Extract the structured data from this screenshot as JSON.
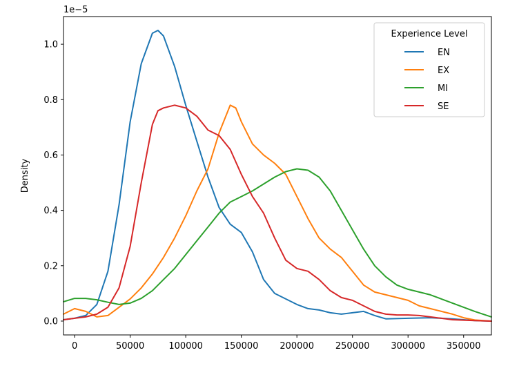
{
  "chart_data": {
    "type": "line",
    "title": "",
    "xlabel": "",
    "ylabel": "Density",
    "y_offset_label": "1e−5",
    "xlim": [
      -10000,
      375000
    ],
    "ylim": [
      -0.05,
      1.1
    ],
    "xticks": [
      0,
      50000,
      100000,
      150000,
      200000,
      250000,
      300000,
      350000
    ],
    "yticks": [
      0.0,
      0.2,
      0.4,
      0.6,
      0.8,
      1.0
    ],
    "xtick_labels": [
      "0",
      "50000",
      "100000",
      "150000",
      "200000",
      "250000",
      "300000",
      "350000"
    ],
    "ytick_labels": [
      "0.0",
      "0.2",
      "0.4",
      "0.6",
      "0.8",
      "1.0"
    ],
    "grid": false,
    "legend": {
      "title": "Experience Level",
      "placement": "top-right"
    },
    "series": [
      {
        "name": "EN",
        "color": "#1f77b4",
        "points": [
          [
            -10000,
            0.005
          ],
          [
            0,
            0.01
          ],
          [
            10000,
            0.02
          ],
          [
            20000,
            0.06
          ],
          [
            30000,
            0.18
          ],
          [
            40000,
            0.42
          ],
          [
            50000,
            0.72
          ],
          [
            60000,
            0.93
          ],
          [
            70000,
            1.04
          ],
          [
            75000,
            1.05
          ],
          [
            80000,
            1.03
          ],
          [
            90000,
            0.92
          ],
          [
            100000,
            0.78
          ],
          [
            110000,
            0.65
          ],
          [
            120000,
            0.52
          ],
          [
            130000,
            0.41
          ],
          [
            140000,
            0.35
          ],
          [
            150000,
            0.32
          ],
          [
            160000,
            0.25
          ],
          [
            170000,
            0.15
          ],
          [
            180000,
            0.1
          ],
          [
            190000,
            0.08
          ],
          [
            200000,
            0.06
          ],
          [
            210000,
            0.045
          ],
          [
            220000,
            0.04
          ],
          [
            230000,
            0.03
          ],
          [
            240000,
            0.025
          ],
          [
            250000,
            0.03
          ],
          [
            260000,
            0.035
          ],
          [
            270000,
            0.02
          ],
          [
            280000,
            0.008
          ],
          [
            300000,
            0.01
          ],
          [
            320000,
            0.012
          ],
          [
            340000,
            0.008
          ],
          [
            360000,
            0.002
          ],
          [
            375000,
            0.0
          ]
        ]
      },
      {
        "name": "EX",
        "color": "#ff7f0e",
        "points": [
          [
            -10000,
            0.025
          ],
          [
            0,
            0.045
          ],
          [
            10000,
            0.035
          ],
          [
            20000,
            0.015
          ],
          [
            30000,
            0.02
          ],
          [
            40000,
            0.05
          ],
          [
            50000,
            0.08
          ],
          [
            60000,
            0.12
          ],
          [
            70000,
            0.17
          ],
          [
            80000,
            0.23
          ],
          [
            90000,
            0.3
          ],
          [
            100000,
            0.38
          ],
          [
            110000,
            0.47
          ],
          [
            120000,
            0.55
          ],
          [
            130000,
            0.68
          ],
          [
            140000,
            0.78
          ],
          [
            145000,
            0.77
          ],
          [
            150000,
            0.72
          ],
          [
            160000,
            0.64
          ],
          [
            170000,
            0.6
          ],
          [
            180000,
            0.57
          ],
          [
            190000,
            0.53
          ],
          [
            200000,
            0.45
          ],
          [
            210000,
            0.37
          ],
          [
            220000,
            0.3
          ],
          [
            230000,
            0.26
          ],
          [
            240000,
            0.23
          ],
          [
            250000,
            0.18
          ],
          [
            260000,
            0.13
          ],
          [
            270000,
            0.105
          ],
          [
            280000,
            0.095
          ],
          [
            290000,
            0.085
          ],
          [
            300000,
            0.075
          ],
          [
            310000,
            0.055
          ],
          [
            320000,
            0.045
          ],
          [
            330000,
            0.035
          ],
          [
            340000,
            0.025
          ],
          [
            350000,
            0.012
          ],
          [
            360000,
            0.004
          ],
          [
            375000,
            0.0
          ]
        ]
      },
      {
        "name": "MI",
        "color": "#2ca02c",
        "points": [
          [
            -10000,
            0.07
          ],
          [
            0,
            0.082
          ],
          [
            10000,
            0.082
          ],
          [
            20000,
            0.077
          ],
          [
            30000,
            0.068
          ],
          [
            40000,
            0.06
          ],
          [
            50000,
            0.065
          ],
          [
            60000,
            0.082
          ],
          [
            70000,
            0.11
          ],
          [
            80000,
            0.15
          ],
          [
            90000,
            0.19
          ],
          [
            100000,
            0.24
          ],
          [
            110000,
            0.29
          ],
          [
            120000,
            0.34
          ],
          [
            130000,
            0.39
          ],
          [
            140000,
            0.43
          ],
          [
            150000,
            0.45
          ],
          [
            160000,
            0.47
          ],
          [
            170000,
            0.495
          ],
          [
            180000,
            0.52
          ],
          [
            190000,
            0.54
          ],
          [
            200000,
            0.55
          ],
          [
            210000,
            0.545
          ],
          [
            220000,
            0.52
          ],
          [
            230000,
            0.47
          ],
          [
            240000,
            0.4
          ],
          [
            250000,
            0.33
          ],
          [
            260000,
            0.26
          ],
          [
            270000,
            0.2
          ],
          [
            280000,
            0.16
          ],
          [
            290000,
            0.13
          ],
          [
            300000,
            0.115
          ],
          [
            310000,
            0.105
          ],
          [
            320000,
            0.095
          ],
          [
            330000,
            0.08
          ],
          [
            340000,
            0.065
          ],
          [
            350000,
            0.05
          ],
          [
            360000,
            0.035
          ],
          [
            375000,
            0.015
          ]
        ]
      },
      {
        "name": "SE",
        "color": "#d62728",
        "points": [
          [
            -10000,
            0.005
          ],
          [
            0,
            0.01
          ],
          [
            10000,
            0.015
          ],
          [
            20000,
            0.025
          ],
          [
            30000,
            0.05
          ],
          [
            40000,
            0.12
          ],
          [
            50000,
            0.27
          ],
          [
            60000,
            0.5
          ],
          [
            70000,
            0.71
          ],
          [
            75000,
            0.76
          ],
          [
            80000,
            0.77
          ],
          [
            90000,
            0.78
          ],
          [
            100000,
            0.77
          ],
          [
            110000,
            0.74
          ],
          [
            120000,
            0.69
          ],
          [
            130000,
            0.67
          ],
          [
            140000,
            0.62
          ],
          [
            150000,
            0.53
          ],
          [
            160000,
            0.45
          ],
          [
            170000,
            0.39
          ],
          [
            180000,
            0.3
          ],
          [
            190000,
            0.22
          ],
          [
            200000,
            0.19
          ],
          [
            210000,
            0.18
          ],
          [
            220000,
            0.15
          ],
          [
            230000,
            0.11
          ],
          [
            240000,
            0.085
          ],
          [
            250000,
            0.075
          ],
          [
            260000,
            0.055
          ],
          [
            270000,
            0.035
          ],
          [
            280000,
            0.025
          ],
          [
            290000,
            0.022
          ],
          [
            300000,
            0.022
          ],
          [
            310000,
            0.02
          ],
          [
            320000,
            0.015
          ],
          [
            330000,
            0.01
          ],
          [
            340000,
            0.005
          ],
          [
            360000,
            0.002
          ],
          [
            375000,
            0.0
          ]
        ]
      }
    ]
  }
}
